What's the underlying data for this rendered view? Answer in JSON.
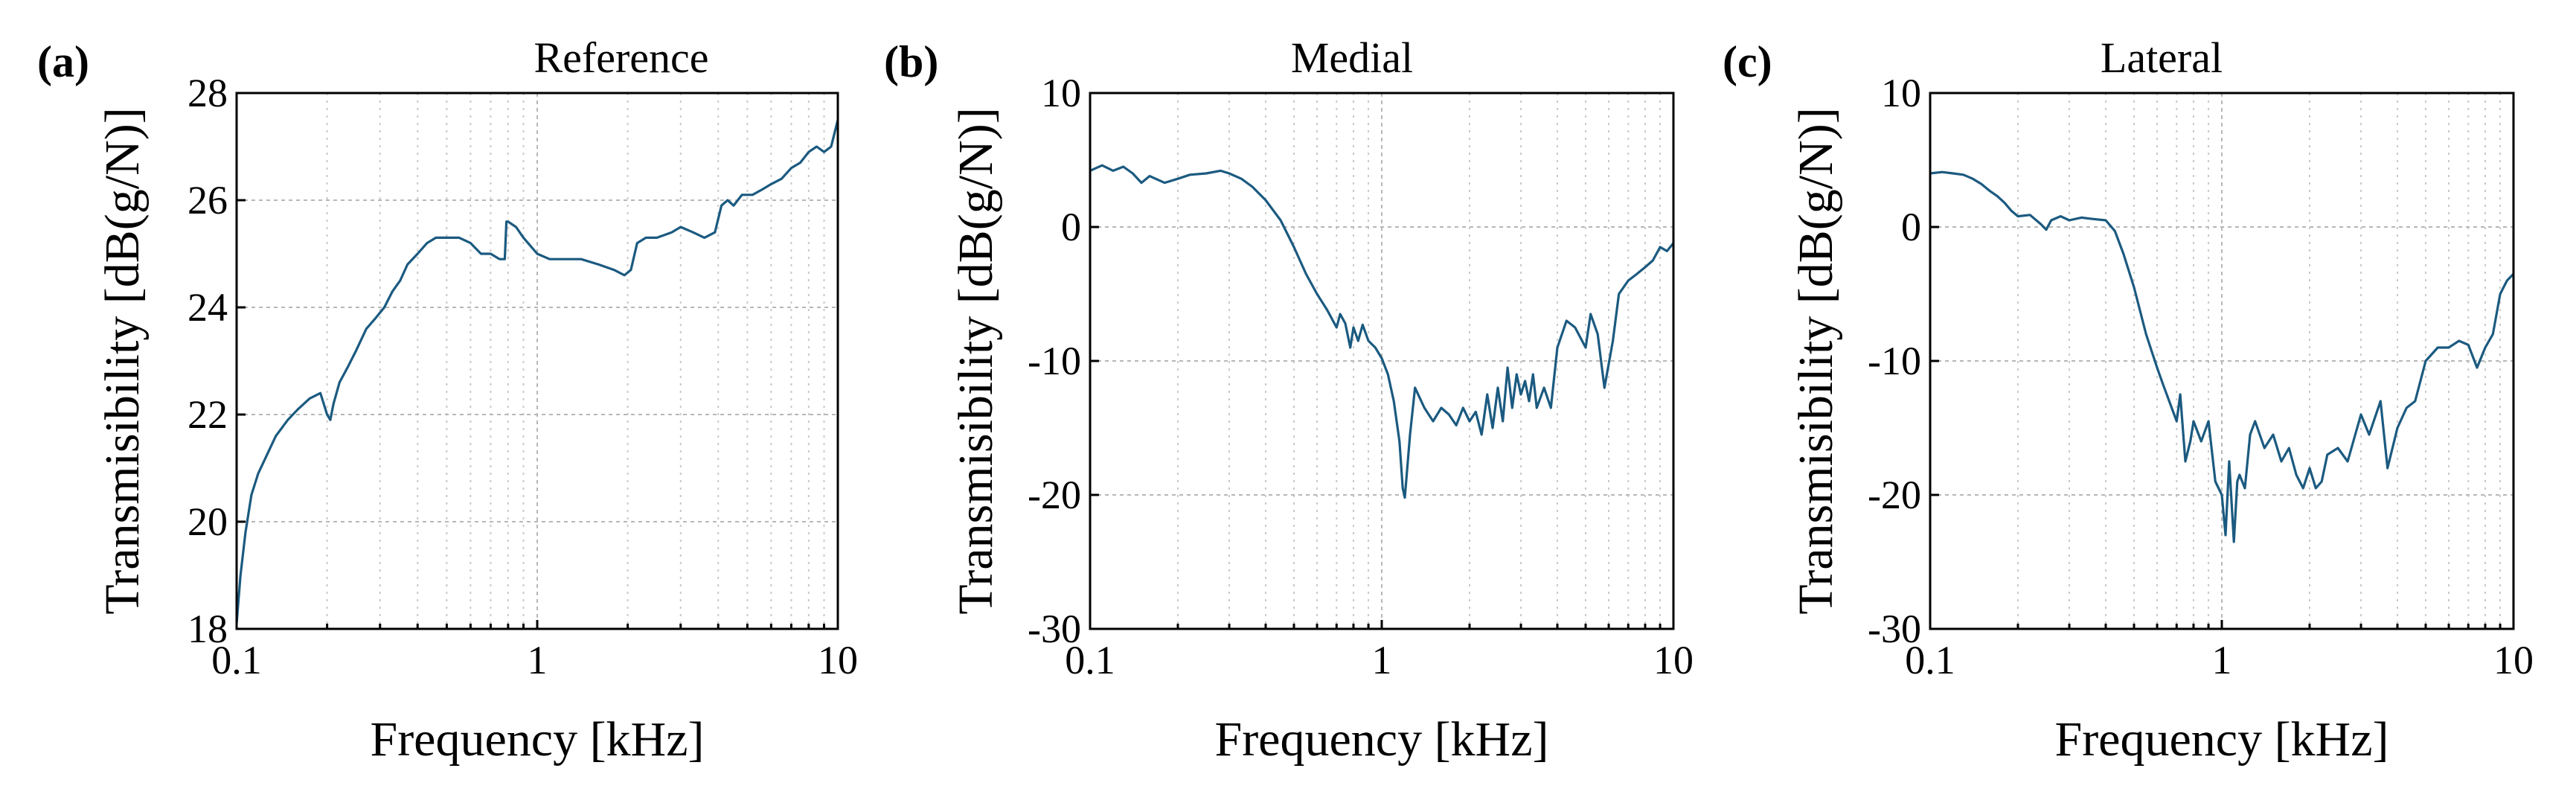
{
  "figure": {
    "panels": [
      {
        "label": "(a)"
      },
      {
        "label": "(b)"
      },
      {
        "label": "(c)"
      }
    ]
  },
  "colors": {
    "line": "#1b5a80"
  },
  "chart_data": [
    {
      "type": "line",
      "title": "Reference",
      "xlabel": "Frequency [kHz]",
      "ylabel": "Transmisibility [dB(g/N)]",
      "xscale": "log",
      "xlim": [
        0.1,
        10
      ],
      "ylim": [
        18,
        28
      ],
      "xticks": [
        0.1,
        1,
        10
      ],
      "xtick_labels": [
        "0.1",
        "1",
        "10"
      ],
      "yticks": [
        18,
        20,
        22,
        24,
        26,
        28
      ],
      "ytick_labels": [
        "18",
        "20",
        "22",
        "24",
        "26",
        "28"
      ],
      "grid": true,
      "series": [
        {
          "name": "Reference",
          "x": [
            0.1,
            0.103,
            0.107,
            0.112,
            0.118,
            0.125,
            0.135,
            0.148,
            0.16,
            0.175,
            0.19,
            0.2,
            0.205,
            0.21,
            0.22,
            0.235,
            0.25,
            0.27,
            0.29,
            0.31,
            0.33,
            0.35,
            0.37,
            0.4,
            0.43,
            0.46,
            0.5,
            0.55,
            0.6,
            0.65,
            0.7,
            0.75,
            0.78,
            0.79,
            0.8,
            0.85,
            0.9,
            1.0,
            1.1,
            1.2,
            1.4,
            1.6,
            1.8,
            1.95,
            2.05,
            2.15,
            2.3,
            2.5,
            2.8,
            3.0,
            3.3,
            3.6,
            3.9,
            4.1,
            4.3,
            4.5,
            4.8,
            5.2,
            5.6,
            6.0,
            6.5,
            7.0,
            7.5,
            8.0,
            8.5,
            9.0,
            9.5,
            10.0
          ],
          "y": [
            18.1,
            19.0,
            19.8,
            20.5,
            20.9,
            21.2,
            21.6,
            21.9,
            22.1,
            22.3,
            22.4,
            22.0,
            21.9,
            22.2,
            22.6,
            22.9,
            23.2,
            23.6,
            23.8,
            24.0,
            24.3,
            24.5,
            24.8,
            25.0,
            25.2,
            25.3,
            25.3,
            25.3,
            25.2,
            25.0,
            25.0,
            24.9,
            24.9,
            25.6,
            25.6,
            25.5,
            25.3,
            25.0,
            24.9,
            24.9,
            24.9,
            24.8,
            24.7,
            24.6,
            24.7,
            25.2,
            25.3,
            25.3,
            25.4,
            25.5,
            25.4,
            25.3,
            25.4,
            25.9,
            26.0,
            25.9,
            26.1,
            26.1,
            26.2,
            26.3,
            26.4,
            26.6,
            26.7,
            26.9,
            27.0,
            26.9,
            27.0,
            27.5
          ]
        }
      ]
    },
    {
      "type": "line",
      "title": "Medial",
      "xlabel": "Frequency [kHz]",
      "ylabel": "Transmisibility [dB(g/N)]",
      "xscale": "log",
      "xlim": [
        0.1,
        10
      ],
      "ylim": [
        -30,
        10
      ],
      "xticks": [
        0.1,
        1,
        10
      ],
      "xtick_labels": [
        "0.1",
        "1",
        "10"
      ],
      "yticks": [
        -30,
        -20,
        -10,
        0,
        10
      ],
      "ytick_labels": [
        "-30",
        "-20",
        "-10",
        "0",
        "10"
      ],
      "grid": true,
      "series": [
        {
          "name": "Medial",
          "x": [
            0.1,
            0.11,
            0.12,
            0.13,
            0.14,
            0.15,
            0.16,
            0.18,
            0.2,
            0.22,
            0.25,
            0.28,
            0.3,
            0.33,
            0.36,
            0.4,
            0.45,
            0.5,
            0.55,
            0.6,
            0.65,
            0.7,
            0.72,
            0.75,
            0.78,
            0.8,
            0.83,
            0.86,
            0.9,
            0.95,
            1.0,
            1.05,
            1.1,
            1.15,
            1.18,
            1.2,
            1.25,
            1.3,
            1.4,
            1.5,
            1.6,
            1.7,
            1.8,
            1.9,
            2.0,
            2.1,
            2.2,
            2.3,
            2.4,
            2.5,
            2.6,
            2.7,
            2.8,
            2.9,
            3.0,
            3.1,
            3.2,
            3.3,
            3.4,
            3.6,
            3.8,
            4.0,
            4.3,
            4.6,
            5.0,
            5.2,
            5.5,
            5.8,
            6.2,
            6.5,
            7.0,
            7.5,
            8.0,
            8.5,
            9.0,
            9.5,
            10.0
          ],
          "y": [
            4.2,
            4.6,
            4.2,
            4.5,
            4.0,
            3.3,
            3.8,
            3.3,
            3.6,
            3.9,
            4.0,
            4.2,
            4.0,
            3.6,
            3.0,
            2.0,
            0.5,
            -1.5,
            -3.5,
            -5.0,
            -6.2,
            -7.5,
            -6.5,
            -7.2,
            -9.0,
            -7.5,
            -8.5,
            -7.3,
            -8.5,
            -9.0,
            -9.8,
            -11.0,
            -13.0,
            -16.0,
            -19.5,
            -20.2,
            -15.5,
            -12.0,
            -13.5,
            -14.5,
            -13.5,
            -14.0,
            -14.8,
            -13.5,
            -14.5,
            -13.8,
            -15.5,
            -12.5,
            -15.0,
            -12.0,
            -14.5,
            -10.5,
            -13.5,
            -11.0,
            -12.5,
            -11.5,
            -13.0,
            -11.0,
            -13.5,
            -12.0,
            -13.5,
            -9.0,
            -7.0,
            -7.5,
            -9.0,
            -6.5,
            -8.0,
            -12.0,
            -8.5,
            -5.0,
            -4.0,
            -3.5,
            -3.0,
            -2.5,
            -1.5,
            -1.8,
            -1.2
          ]
        }
      ]
    },
    {
      "type": "line",
      "title": "Lateral",
      "xlabel": "Frequency [kHz]",
      "ylabel": "Transmisibility [dB(g/N)]",
      "xscale": "log",
      "xlim": [
        0.1,
        10
      ],
      "ylim": [
        -30,
        10
      ],
      "xticks": [
        0.1,
        1,
        10
      ],
      "xtick_labels": [
        "0.1",
        "1",
        "10"
      ],
      "yticks": [
        -30,
        -20,
        -10,
        0,
        10
      ],
      "ytick_labels": [
        "-30",
        "-20",
        "-10",
        "0",
        "10"
      ],
      "grid": true,
      "series": [
        {
          "name": "Lateral",
          "x": [
            0.1,
            0.11,
            0.12,
            0.13,
            0.14,
            0.15,
            0.16,
            0.17,
            0.18,
            0.19,
            0.2,
            0.22,
            0.24,
            0.25,
            0.26,
            0.28,
            0.3,
            0.33,
            0.36,
            0.4,
            0.43,
            0.46,
            0.5,
            0.55,
            0.6,
            0.63,
            0.66,
            0.7,
            0.72,
            0.75,
            0.78,
            0.8,
            0.85,
            0.9,
            0.95,
            1.0,
            1.03,
            1.06,
            1.1,
            1.13,
            1.15,
            1.2,
            1.25,
            1.3,
            1.4,
            1.5,
            1.6,
            1.7,
            1.8,
            1.9,
            2.0,
            2.1,
            2.2,
            2.3,
            2.5,
            2.7,
            3.0,
            3.2,
            3.5,
            3.7,
            4.0,
            4.3,
            4.6,
            5.0,
            5.5,
            6.0,
            6.5,
            7.0,
            7.5,
            8.0,
            8.5,
            9.0,
            9.5,
            10.0
          ],
          "y": [
            4.0,
            4.1,
            4.0,
            3.9,
            3.6,
            3.2,
            2.7,
            2.3,
            1.8,
            1.2,
            0.8,
            0.9,
            0.2,
            -0.2,
            0.5,
            0.8,
            0.5,
            0.7,
            0.6,
            0.5,
            -0.3,
            -2.0,
            -4.5,
            -8.0,
            -10.5,
            -11.8,
            -13.0,
            -14.5,
            -12.5,
            -17.5,
            -16.0,
            -14.5,
            -16.0,
            -14.5,
            -19.0,
            -20.0,
            -23.0,
            -17.5,
            -23.5,
            -19.0,
            -18.5,
            -19.5,
            -15.5,
            -14.5,
            -16.5,
            -15.5,
            -17.5,
            -16.5,
            -18.5,
            -19.5,
            -18.0,
            -19.5,
            -19.0,
            -17.0,
            -16.5,
            -17.5,
            -14.0,
            -15.5,
            -13.0,
            -18.0,
            -15.0,
            -13.5,
            -13.0,
            -10.0,
            -9.0,
            -9.0,
            -8.5,
            -8.8,
            -10.5,
            -9.0,
            -8.0,
            -5.0,
            -4.0,
            -3.5
          ]
        }
      ]
    }
  ]
}
